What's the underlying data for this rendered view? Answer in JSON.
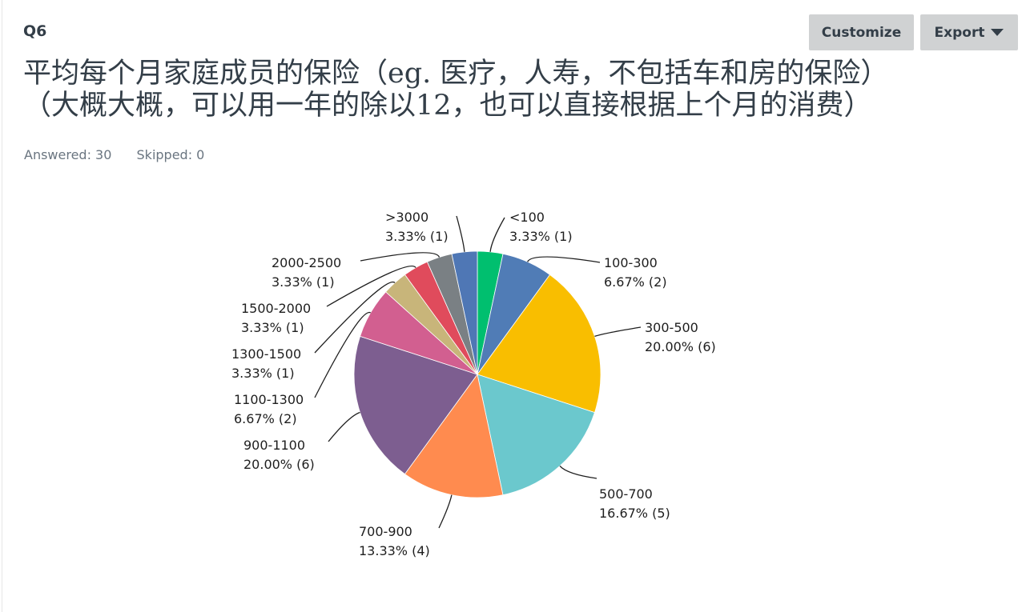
{
  "question": {
    "number": "Q6",
    "title_line1": "平均每个月家庭成员的保险（eg. 医疗，人寿，不包括车和房的保险）",
    "title_line2": "（大概大概，可以用一年的除以12，也可以直接根据上个月的消费）",
    "answered": "Answered: 30",
    "skipped": "Skipped: 0"
  },
  "toolbar": {
    "customize_label": "Customize",
    "export_label": "Export"
  },
  "chart_data": {
    "type": "pie",
    "title": "",
    "start": "top",
    "direction": "clockwise",
    "slices": [
      {
        "label": "<100",
        "percent": 3.33,
        "count": 1,
        "pct_text": "3.33% (1)",
        "color": "#00bf6f"
      },
      {
        "label": "100-300",
        "percent": 6.67,
        "count": 2,
        "pct_text": "6.67% (2)",
        "color": "#507cb6"
      },
      {
        "label": "300-500",
        "percent": 20.0,
        "count": 6,
        "pct_text": "20.00% (6)",
        "color": "#f9be00"
      },
      {
        "label": "500-700",
        "percent": 16.67,
        "count": 5,
        "pct_text": "16.67% (5)",
        "color": "#6bc8cd"
      },
      {
        "label": "700-900",
        "percent": 13.33,
        "count": 4,
        "pct_text": "13.33% (4)",
        "color": "#ff8b4f"
      },
      {
        "label": "900-1100",
        "percent": 20.0,
        "count": 6,
        "pct_text": "20.00% (6)",
        "color": "#7d5e90"
      },
      {
        "label": "1100-1300",
        "percent": 6.67,
        "count": 2,
        "pct_text": "6.67% (2)",
        "color": "#d25f90"
      },
      {
        "label": "1300-1500",
        "percent": 3.33,
        "count": 1,
        "pct_text": "3.33% (1)",
        "color": "#c8b57a"
      },
      {
        "label": "1500-2000",
        "percent": 3.33,
        "count": 1,
        "pct_text": "3.33% (1)",
        "color": "#e04b5c"
      },
      {
        "label": "2000-2500",
        "percent": 3.33,
        "count": 1,
        "pct_text": "3.33% (1)",
        "color": "#7a8084"
      },
      {
        "label": ">3000",
        "percent": 3.33,
        "count": 1,
        "pct_text": "3.33% (1)",
        "color": "#4f77b5"
      }
    ]
  }
}
